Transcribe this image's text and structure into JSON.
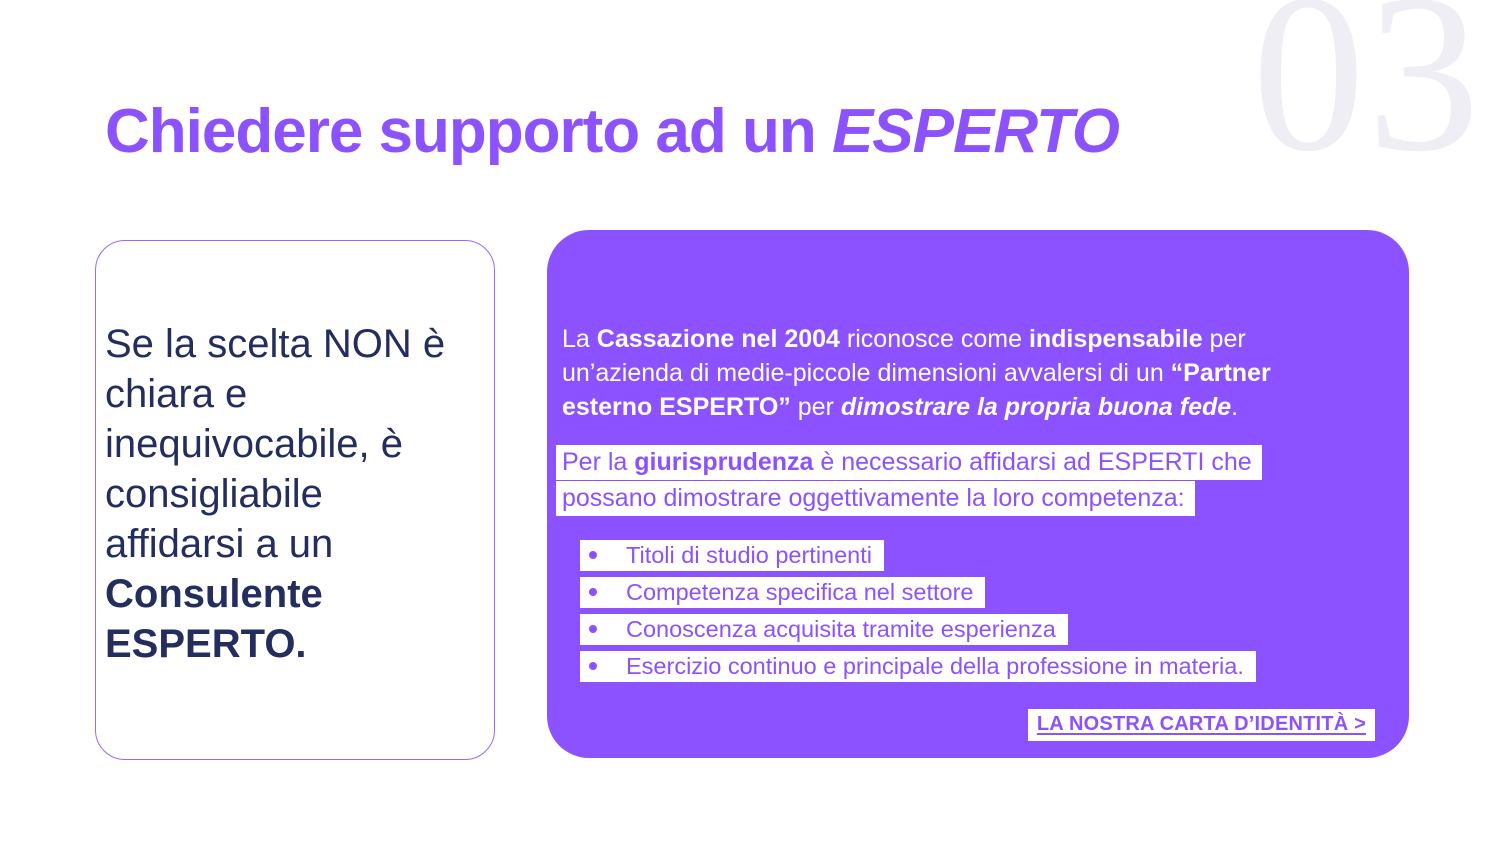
{
  "page": {
    "number": "03",
    "accent_color": "#8C52FF",
    "navy_color": "#232D5E",
    "number_color": "#EFEEF4"
  },
  "title": {
    "regular": "Chiedere supporto ad un ",
    "italic": "ESPERTO"
  },
  "left_card": {
    "lines": {
      "l1": "Se la scelta NON è",
      "l2": "chiara e",
      "l3": "inequivocabile, è",
      "l4": "consigliabile",
      "l5": "affidarsi a un",
      "l6": "Consulente",
      "l7": "ESPERTO."
    }
  },
  "right_card": {
    "paragraph1": {
      "l1": {
        "s1": "La ",
        "s2": "Cassazione nel 2004",
        "s3": " riconosce come ",
        "s4": "indispensabile",
        "s5": " per"
      },
      "l2": {
        "s1": "un’azienda di medie-piccole dimensioni avvalersi di un ",
        "s2": "“Partner"
      },
      "l3": {
        "s1": "esterno ESPERTO”",
        "s2": " per ",
        "s3": "dimostrare la propria buona fede",
        "s4": "."
      }
    },
    "paragraph2": {
      "l1": {
        "s1": "Per la ",
        "s2": "giurisprudenza",
        "s3": " è necessario affidarsi ad ESPERTI che"
      },
      "l2": "possano dimostrare oggettivamente la loro competenza:"
    },
    "bullets": {
      "b1": "Titoli di studio pertinenti",
      "b2": "Competenza specifica nel settore",
      "b3": "Conoscenza acquisita tramite esperienza",
      "b4": "Esercizio continuo e principale della professione in materia."
    },
    "link_label": "LA NOSTRA CARTA D’IDENTITÀ >"
  }
}
